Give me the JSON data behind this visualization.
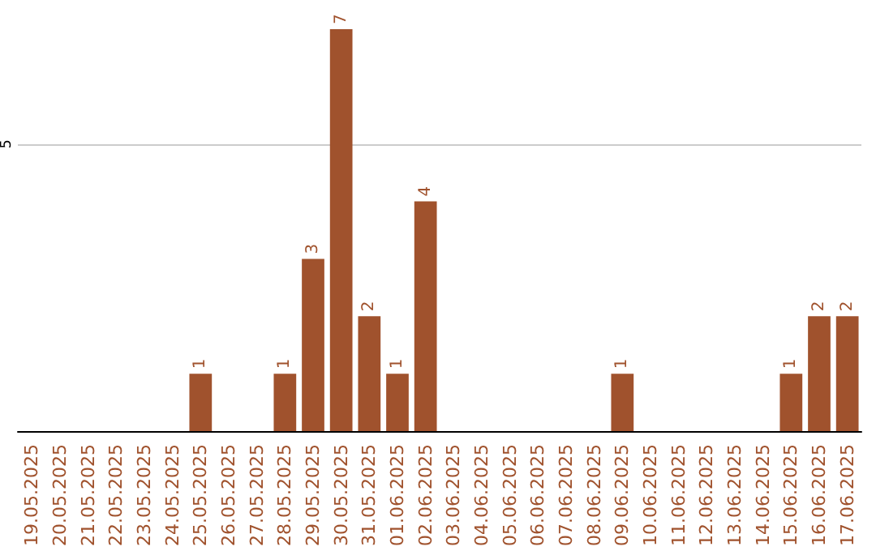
{
  "chart_data": {
    "type": "bar",
    "categories": [
      "19.05.2025",
      "20.05.2025",
      "21.05.2025",
      "22.05.2025",
      "23.05.2025",
      "24.05.2025",
      "25.05.2025",
      "26.05.2025",
      "27.05.2025",
      "28.05.2025",
      "29.05.2025",
      "30.05.2025",
      "31.05.2025",
      "01.06.2025",
      "02.06.2025",
      "03.06.2025",
      "04.06.2025",
      "05.06.2025",
      "06.06.2025",
      "07.06.2025",
      "08.06.2025",
      "09.06.2025",
      "10.06.2025",
      "11.06.2025",
      "12.06.2025",
      "13.06.2025",
      "14.06.2025",
      "15.06.2025",
      "16.06.2025",
      "17.06.2025"
    ],
    "values": [
      0,
      0,
      0,
      0,
      0,
      0,
      1,
      0,
      0,
      1,
      3,
      7,
      2,
      1,
      4,
      0,
      0,
      0,
      0,
      0,
      0,
      1,
      0,
      0,
      0,
      0,
      0,
      1,
      2,
      2
    ],
    "value_labels": [
      null,
      null,
      null,
      null,
      null,
      null,
      "1",
      null,
      null,
      "1",
      "3",
      "7",
      "2",
      "1",
      "4",
      null,
      null,
      null,
      null,
      null,
      null,
      "1",
      null,
      null,
      null,
      null,
      null,
      "1",
      "2",
      "2"
    ],
    "color": "#a0522d",
    "ylim": [
      0,
      7
    ],
    "yticks": [
      5
    ],
    "grid": "y"
  }
}
